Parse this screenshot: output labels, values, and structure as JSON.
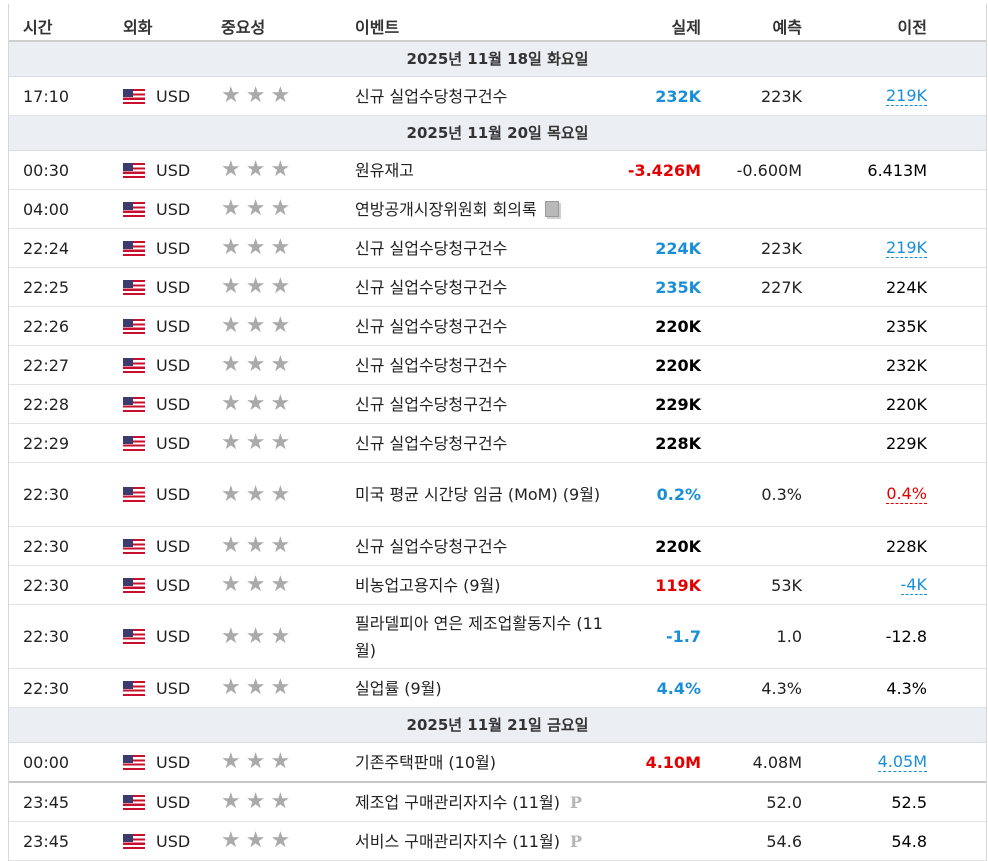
{
  "headers": {
    "time": "시간",
    "currency": "외화",
    "importance": "중요성",
    "event": "이벤트",
    "actual": "실제",
    "forecast": "예측",
    "previous": "이전"
  },
  "colors": {
    "positive": "#1a8fd8",
    "negative": "#e30000",
    "date_bar": "#ebeef3",
    "star": "#aaaaaa"
  },
  "importance_icon": "star-icon",
  "sections": [
    {
      "date": "2025년 11월 18일 화요일",
      "rows": [
        {
          "time": "17:10",
          "currency": "USD",
          "event": "신규 실업수당청구건수",
          "actual": "232K",
          "actual_color": "blue",
          "forecast": "223K",
          "previous": "219K",
          "previous_style": "ul-blue"
        }
      ]
    },
    {
      "date": "2025년 11월 20일 목요일",
      "rows": [
        {
          "time": "00:30",
          "currency": "USD",
          "event": "원유재고",
          "actual": "-3.426M",
          "actual_color": "red",
          "forecast": "-0.600M",
          "previous": "6.413M",
          "previous_style": "black"
        },
        {
          "time": "04:00",
          "currency": "USD",
          "event": "연방공개시장위원회 회의록",
          "actual": "",
          "actual_color": "black",
          "forecast": "",
          "previous": "",
          "previous_style": "black",
          "icon": "document-icon"
        },
        {
          "time": "22:24",
          "currency": "USD",
          "event": "신규 실업수당청구건수",
          "actual": "224K",
          "actual_color": "blue",
          "forecast": "223K",
          "previous": "219K",
          "previous_style": "ul-blue"
        },
        {
          "time": "22:25",
          "currency": "USD",
          "event": "신규 실업수당청구건수",
          "actual": "235K",
          "actual_color": "blue",
          "forecast": "227K",
          "previous": "224K",
          "previous_style": "black"
        },
        {
          "time": "22:26",
          "currency": "USD",
          "event": "신규 실업수당청구건수",
          "actual": "220K",
          "actual_color": "black",
          "forecast": "",
          "previous": "235K",
          "previous_style": "black"
        },
        {
          "time": "22:27",
          "currency": "USD",
          "event": "신규 실업수당청구건수",
          "actual": "220K",
          "actual_color": "black",
          "forecast": "",
          "previous": "232K",
          "previous_style": "black"
        },
        {
          "time": "22:28",
          "currency": "USD",
          "event": "신규 실업수당청구건수",
          "actual": "229K",
          "actual_color": "black",
          "forecast": "",
          "previous": "220K",
          "previous_style": "black"
        },
        {
          "time": "22:29",
          "currency": "USD",
          "event": "신규 실업수당청구건수",
          "actual": "228K",
          "actual_color": "black",
          "forecast": "",
          "previous": "229K",
          "previous_style": "black"
        },
        {
          "time": "22:30",
          "currency": "USD",
          "event": "미국 평균 시간당 임금 (MoM) (9월)",
          "actual": "0.2%",
          "actual_color": "blue",
          "forecast": "0.3%",
          "previous": "0.4%",
          "previous_style": "ul-red",
          "tall": true
        },
        {
          "time": "22:30",
          "currency": "USD",
          "event": "신규 실업수당청구건수",
          "actual": "220K",
          "actual_color": "black",
          "forecast": "",
          "previous": "228K",
          "previous_style": "black"
        },
        {
          "time": "22:30",
          "currency": "USD",
          "event": "비농업고용지수 (9월)",
          "actual": "119K",
          "actual_color": "red",
          "forecast": "53K",
          "previous": "-4K",
          "previous_style": "ul-blue"
        },
        {
          "time": "22:30",
          "currency": "USD",
          "event": "필라델피아 연은 제조업활동지수 (11월)",
          "actual": "-1.7",
          "actual_color": "blue",
          "forecast": "1.0",
          "previous": "-12.8",
          "previous_style": "black",
          "tall": true
        },
        {
          "time": "22:30",
          "currency": "USD",
          "event": "실업률 (9월)",
          "actual": "4.4%",
          "actual_color": "blue",
          "forecast": "4.3%",
          "previous": "4.3%",
          "previous_style": "black"
        }
      ]
    },
    {
      "date": "2025년 11월 21일 금요일",
      "rows": [
        {
          "time": "00:00",
          "currency": "USD",
          "event": "기존주택판매 (10월)",
          "actual": "4.10M",
          "actual_color": "red",
          "forecast": "4.08M",
          "previous": "4.05M",
          "previous_style": "ul-blue",
          "thick": true
        },
        {
          "time": "23:45",
          "currency": "USD",
          "event": "제조업 구매관리자지수 (11월)",
          "actual": "",
          "actual_color": "black",
          "forecast": "52.0",
          "previous": "52.5",
          "previous_style": "black",
          "icon": "preliminary-icon"
        },
        {
          "time": "23:45",
          "currency": "USD",
          "event": "서비스 구매관리자지수 (11월)",
          "actual": "",
          "actual_color": "black",
          "forecast": "54.6",
          "previous": "54.8",
          "previous_style": "black",
          "icon": "preliminary-icon"
        }
      ]
    }
  ]
}
